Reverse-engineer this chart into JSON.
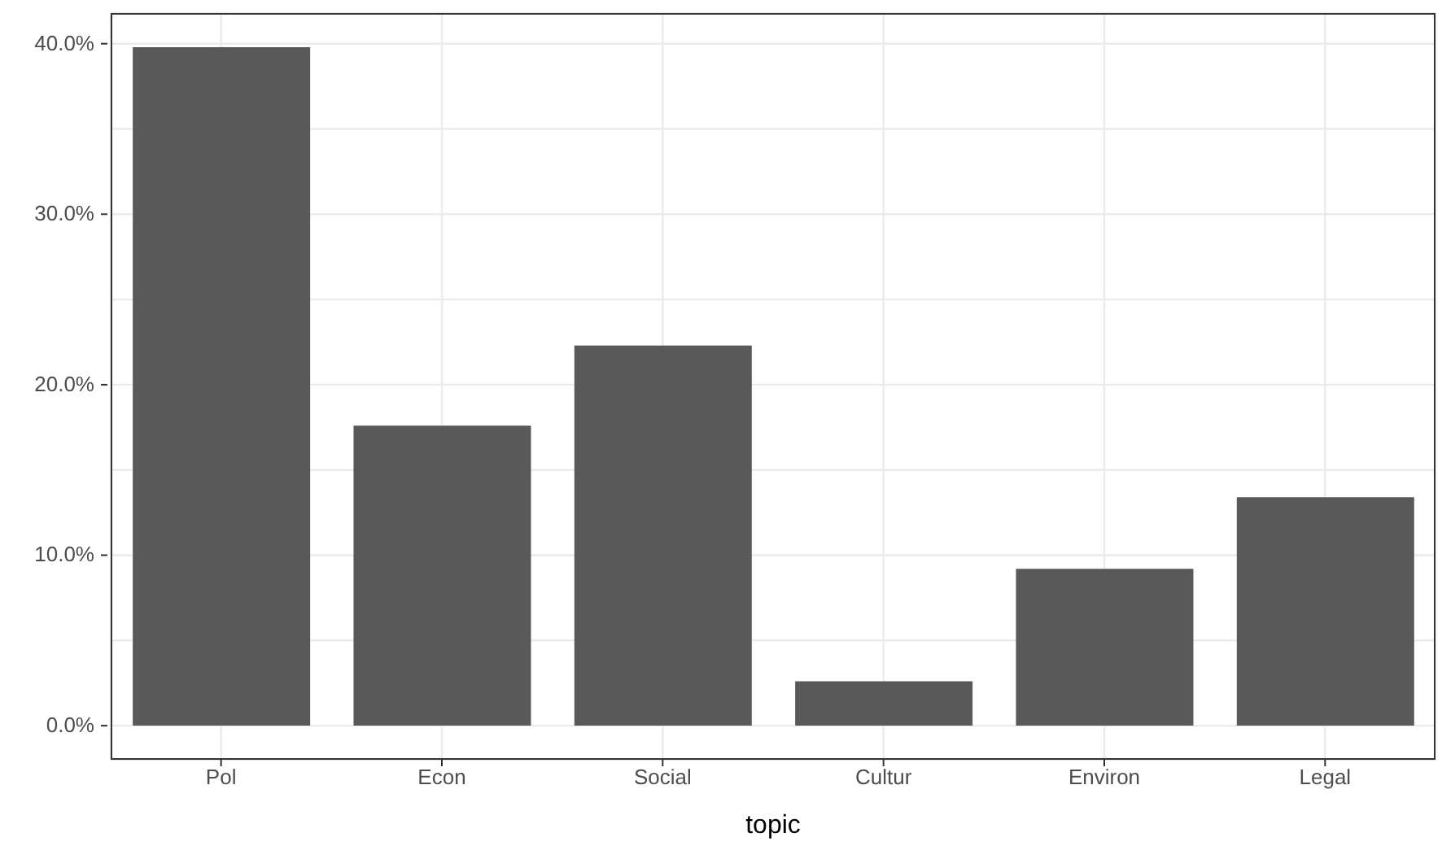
{
  "chart_data": {
    "type": "bar",
    "xlabel": "topic",
    "categories": [
      "Pol",
      "Econ",
      "Social",
      "Cultur",
      "Environ",
      "Legal"
    ],
    "values": [
      39.8,
      17.6,
      22.3,
      2.6,
      9.2,
      13.4
    ],
    "color": "#595959",
    "ylim": [
      -2,
      41.8
    ],
    "yticks": [
      {
        "value": 0,
        "label": "0.0%"
      },
      {
        "value": 5,
        "label": null
      },
      {
        "value": 10,
        "label": "10.0%"
      },
      {
        "value": 15,
        "label": null
      },
      {
        "value": 20,
        "label": "20.0%"
      },
      {
        "value": 25,
        "label": null
      },
      {
        "value": 30,
        "label": "30.0%"
      },
      {
        "value": 35,
        "label": null
      },
      {
        "value": 40,
        "label": "40.0%"
      }
    ],
    "grid": true,
    "legend": false
  }
}
